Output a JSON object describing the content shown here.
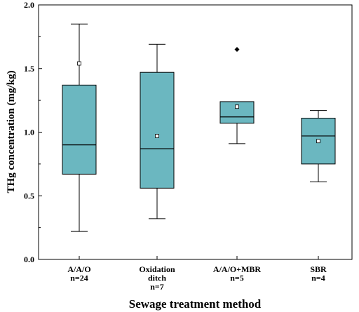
{
  "chart_data": {
    "type": "box",
    "title": "",
    "xlabel": "Sewage treatment method",
    "ylabel": "THg  concentration (mg/kg)",
    "ylim": [
      0,
      2.0
    ],
    "yticks": [
      "0.0",
      "0.5",
      "1.0",
      "1.5",
      "2.0"
    ],
    "grid": false,
    "legend": "none",
    "box_color": "#6bb7c0",
    "categories": [
      {
        "label_lines": [
          "A/A/O",
          "n=24"
        ],
        "min": 0.22,
        "q1": 0.67,
        "median": 0.9,
        "q3": 1.37,
        "max": 1.85,
        "mean": 1.54,
        "outliers": []
      },
      {
        "label_lines": [
          "Oxidation",
          "ditch",
          "n=7"
        ],
        "min": 0.32,
        "q1": 0.56,
        "median": 0.87,
        "q3": 1.47,
        "max": 1.69,
        "mean": 0.97,
        "outliers": []
      },
      {
        "label_lines": [
          "A/A/O+MBR",
          "n=5"
        ],
        "min": 0.91,
        "q1": 1.07,
        "median": 1.12,
        "q3": 1.24,
        "max": 1.24,
        "mean": 1.2,
        "outliers": [
          1.65
        ]
      },
      {
        "label_lines": [
          "SBR",
          "n=4"
        ],
        "min": 0.61,
        "q1": 0.75,
        "median": 0.97,
        "q3": 1.11,
        "max": 1.17,
        "mean": 0.93,
        "outliers": []
      }
    ]
  }
}
